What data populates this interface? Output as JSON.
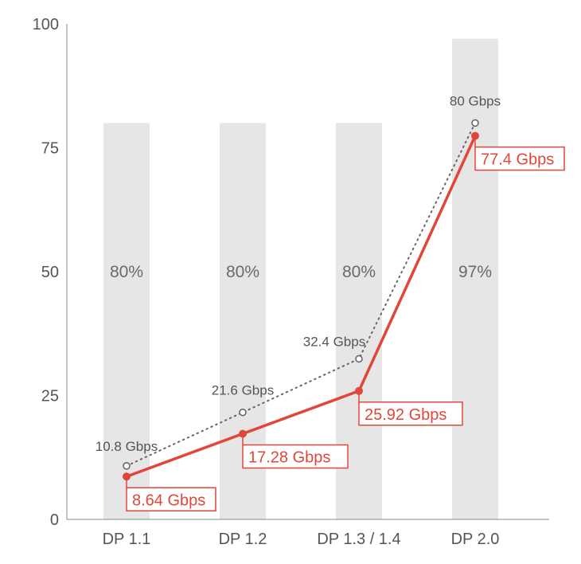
{
  "chart_data": {
    "type": "line",
    "categories": [
      "DP 1.1",
      "DP 1.2",
      "DP 1.3 / 1.4",
      "DP 2.0"
    ],
    "highlight_category": "DP 2.0",
    "ylim": [
      0,
      100
    ],
    "yticks": [
      "0",
      "25",
      "50",
      "75",
      "100"
    ],
    "grid": false,
    "bars": {
      "values": [
        80,
        80,
        80,
        97
      ],
      "labels": [
        "80%",
        "80%",
        "80%",
        "97%"
      ]
    },
    "series": [
      {
        "style": "dotted",
        "values": [
          10.8,
          21.6,
          32.4,
          80
        ],
        "labels": [
          "10.8 Gbps",
          "21.6 Gbps",
          "32.4 Gbps",
          "80 Gbps"
        ]
      },
      {
        "style": "solid",
        "values": [
          8.64,
          17.28,
          25.92,
          77.4
        ],
        "labels": [
          "8.64 Gbps",
          "17.28 Gbps",
          "25.92 Gbps",
          "77.4 Gbps"
        ]
      }
    ],
    "colors": {
      "bar": "#e6e6e6",
      "effective": "#e0473a",
      "raw": "#666666",
      "axis": "#888888",
      "text": "#555555"
    }
  }
}
